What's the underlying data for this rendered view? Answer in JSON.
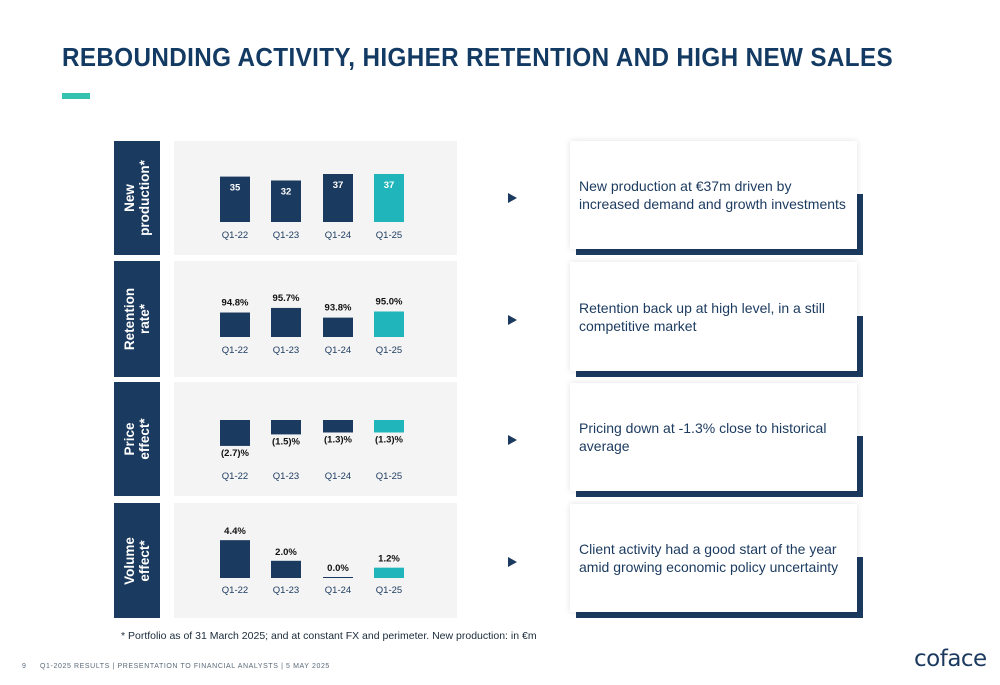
{
  "title": "REBOUNDING ACTIVITY, HIGHER RETENTION AND HIGH NEW SALES",
  "colors": {
    "navy": "#1b3a5f",
    "teal": "#1fb5ba",
    "accent": "#34c3b1",
    "panel_bg": "#f4f4f4"
  },
  "chart_data": [
    {
      "type": "bar",
      "row_label": "New\nproduction*",
      "categories": [
        "Q1-22",
        "Q1-23",
        "Q1-24",
        "Q1-25"
      ],
      "values": [
        35,
        32,
        37,
        37
      ],
      "labels": [
        "35",
        "32",
        "37",
        "37"
      ],
      "unit": "€m",
      "highlight_last": true
    },
    {
      "type": "bar",
      "row_label": "Retention\nrate*",
      "categories": [
        "Q1-22",
        "Q1-23",
        "Q1-24",
        "Q1-25"
      ],
      "values": [
        94.8,
        95.7,
        93.8,
        95.0
      ],
      "labels": [
        "94.8%",
        "95.7%",
        "93.8%",
        "95.0%"
      ],
      "unit": "%",
      "highlight_last": true
    },
    {
      "type": "bar",
      "row_label": "Price\neffect*",
      "categories": [
        "Q1-22",
        "Q1-23",
        "Q1-24",
        "Q1-25"
      ],
      "values": [
        -2.7,
        -1.5,
        -1.3,
        -1.3
      ],
      "labels": [
        "(2.7)%",
        "(1.5)%",
        "(1.3)%",
        "(1.3)%"
      ],
      "unit": "%",
      "highlight_last": true
    },
    {
      "type": "bar",
      "row_label": "Volume\neffect*",
      "categories": [
        "Q1-22",
        "Q1-23",
        "Q1-24",
        "Q1-25"
      ],
      "values": [
        4.4,
        2.0,
        0.0,
        1.2
      ],
      "labels": [
        "4.4%",
        "2.0%",
        "0.0%",
        "1.2%"
      ],
      "unit": "%",
      "highlight_last": true
    }
  ],
  "commentary": [
    "New production at €37m driven by increased demand and growth investments",
    "Retention back up at high level, in a still competitive market",
    "Pricing down at -1.3% close to historical average",
    "Client activity had a good start of the year amid growing economic policy uncertainty"
  ],
  "footnote": "* Portfolio as of 31 March 2025; and at constant FX and perimeter. New production: in €m",
  "footer": {
    "page_number": "9",
    "text": "Q1-2025 RESULTS | PRESENTATION TO FINANCIAL ANALYSTS | 5 MAY 2025",
    "logo": "coface"
  }
}
